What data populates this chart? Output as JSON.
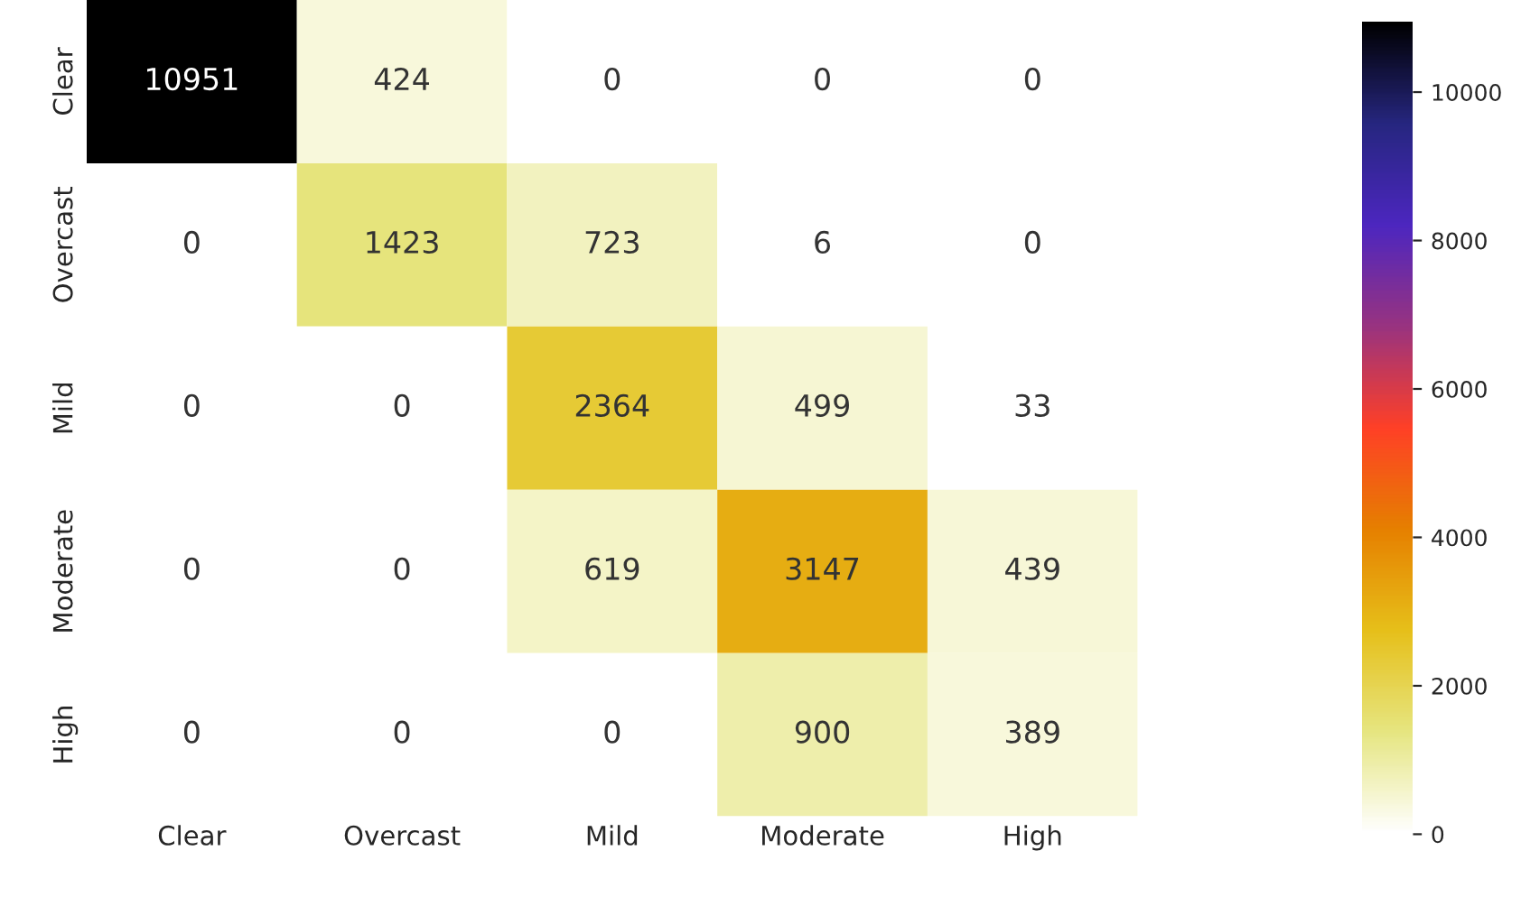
{
  "chart_data": {
    "type": "heatmap",
    "categories": [
      "Clear",
      "Overcast",
      "Mild",
      "Moderate",
      "High"
    ],
    "y_categories": [
      "Clear",
      "Overcast",
      "Mild",
      "Moderate",
      "High"
    ],
    "cells": [
      [
        10951,
        424,
        0,
        0,
        0
      ],
      [
        0,
        1423,
        723,
        6,
        0
      ],
      [
        0,
        0,
        2364,
        499,
        33
      ],
      [
        0,
        0,
        619,
        3147,
        439
      ],
      [
        0,
        0,
        0,
        900,
        389
      ]
    ],
    "clim": [
      0,
      10951
    ],
    "cticks": [
      0,
      2000,
      4000,
      6000,
      8000,
      10000
    ],
    "data_labels": true
  }
}
